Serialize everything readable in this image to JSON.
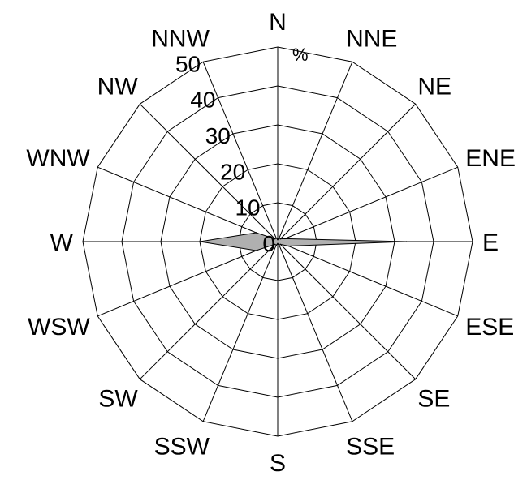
{
  "chart_data": {
    "type": "radar",
    "directions": [
      "N",
      "NNE",
      "NE",
      "ENE",
      "E",
      "ESE",
      "SE",
      "SSE",
      "S",
      "SSW",
      "SW",
      "WSW",
      "W",
      "WNW",
      "NW",
      "NNW"
    ],
    "radial_ticks": [
      "0",
      "10",
      "20",
      "30",
      "40",
      "50"
    ],
    "rmax": 50,
    "unit": "%",
    "series": [
      {
        "values": [
          0.5,
          1,
          1,
          2,
          33,
          3,
          1,
          1,
          0.5,
          1,
          1,
          6,
          20,
          6,
          1,
          1
        ],
        "fill": "#b0b0b0"
      }
    ]
  }
}
